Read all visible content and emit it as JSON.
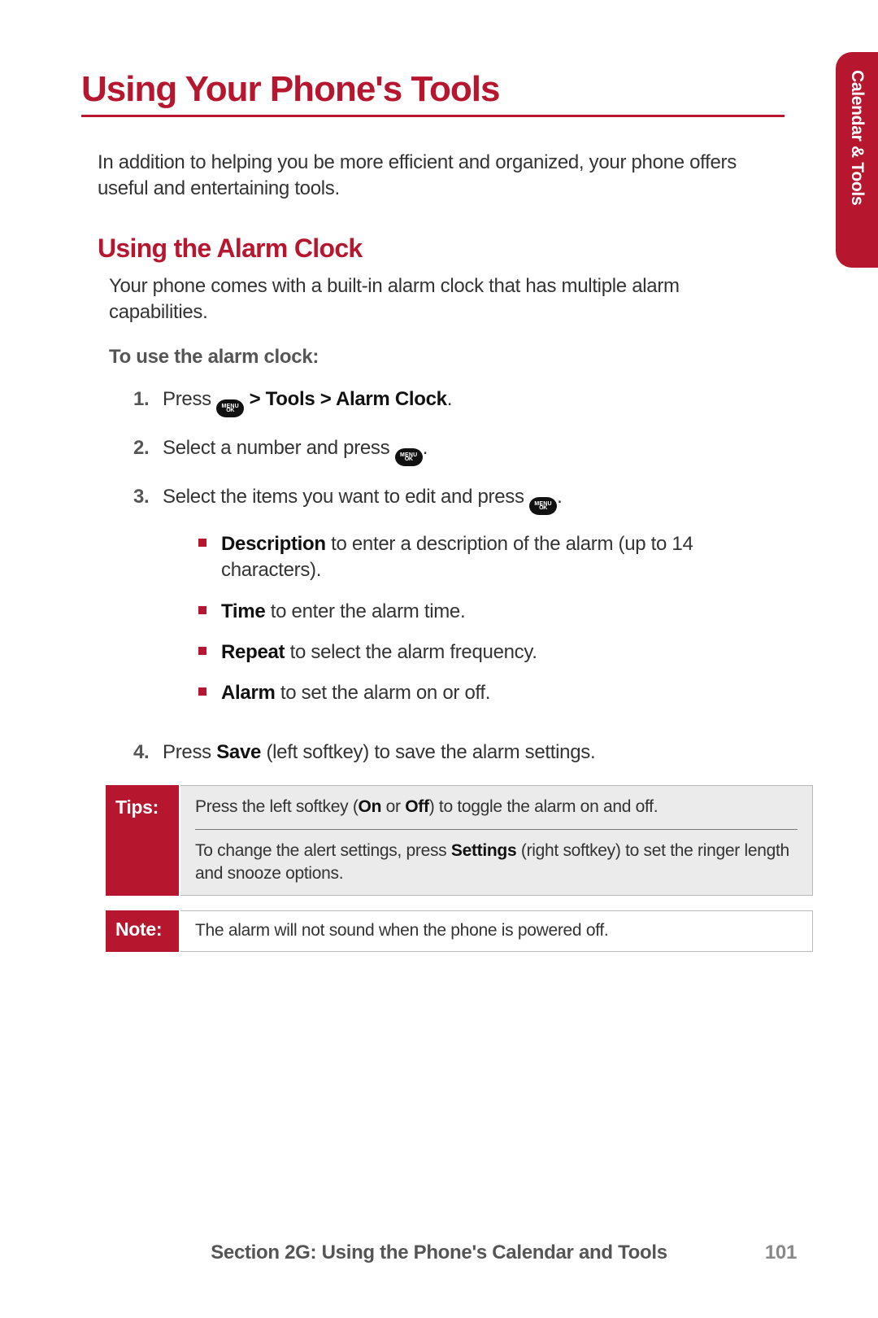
{
  "colors": {
    "brand": "#b6172f",
    "text": "#333333",
    "muted": "#555555",
    "callout_bg": "#ebebeb",
    "callout_border": "#b9b9b9"
  },
  "typography": {
    "h1_size_pt": 33,
    "h2_size_pt": 24,
    "body_size_pt": 18,
    "callout_size_pt": 16
  },
  "side_tab": "Calendar & Tools",
  "page_title": "Using Your Phone's Tools",
  "intro": "In addition to helping you be more efficient and organized, your phone offers useful and entertaining tools.",
  "section": {
    "heading": "Using the Alarm Clock",
    "body": "Your phone comes with a built-in alarm clock that has multiple alarm capabilities.",
    "subhead": "To use the alarm clock:"
  },
  "menu_key": {
    "line1": "MENU",
    "line2": "OK"
  },
  "steps": {
    "s1_a": "Press ",
    "s1_b": " > Tools > Alarm Clock",
    "s2_a": "Select a number and press ",
    "s3_a": "Select the items you want to edit and press ",
    "s4_a": "Press ",
    "s4_bold": "Save",
    "s4_b": " (left softkey) to save the alarm settings."
  },
  "sub_items": {
    "desc_label": "Description",
    "desc_text": " to enter a description of the alarm (up to 14 characters).",
    "time_label": "Time",
    "time_text": " to enter the alarm time.",
    "repeat_label": "Repeat",
    "repeat_text": " to select the alarm frequency.",
    "alarm_label": "Alarm",
    "alarm_text": " to set the alarm on or off."
  },
  "tips": {
    "label": "Tips:",
    "r1_a": "Press the left softkey (",
    "r1_on": "On",
    "r1_or": " or ",
    "r1_off": "Off",
    "r1_b": ") to toggle the alarm on and off.",
    "r2_a": "To change the alert settings, press ",
    "r2_bold": "Settings",
    "r2_b": " (right softkey) to set the ringer length and snooze options."
  },
  "note": {
    "label": "Note:",
    "text": "The alarm will not sound when the phone is powered off."
  },
  "footer": {
    "section": "Section 2G: Using the Phone's Calendar and Tools",
    "page_number": "101"
  }
}
